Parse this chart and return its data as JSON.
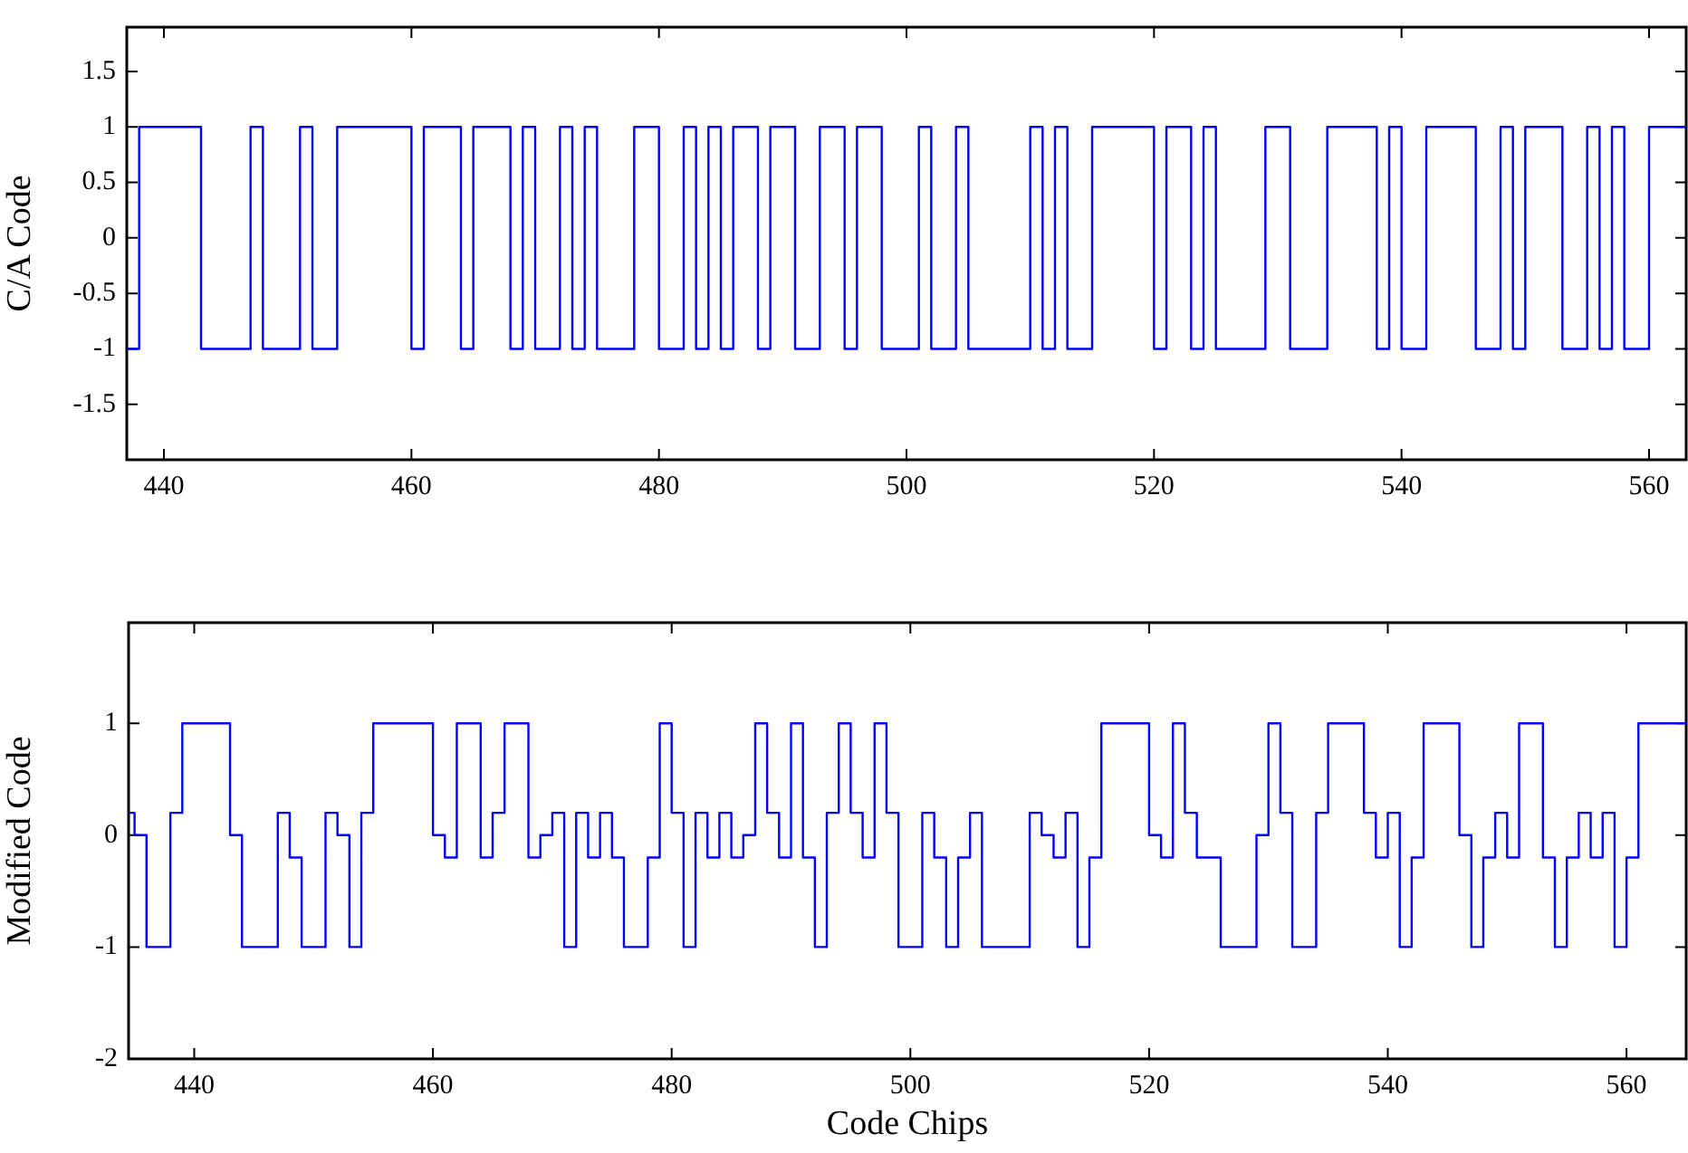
{
  "chart_data": [
    {
      "type": "step",
      "ylabel": "C/A Code",
      "color": "#0000ff",
      "xlim": [
        437,
        563
      ],
      "xticks": [
        440,
        460,
        480,
        500,
        520,
        540,
        560
      ],
      "ylim": [
        -2,
        1.9
      ],
      "yticks": [
        -1.5,
        -1,
        -0.5,
        0,
        0.5,
        1,
        1.5
      ],
      "grid": false,
      "x": [
        437,
        438,
        443,
        447,
        448,
        451,
        452,
        454,
        460,
        461,
        464,
        465,
        468,
        469,
        470,
        472,
        473,
        474,
        475,
        478,
        480,
        482,
        483,
        484,
        485,
        486,
        488,
        489,
        491,
        493,
        495,
        496,
        498,
        501,
        502,
        504,
        505,
        510,
        511,
        512,
        513,
        515,
        520,
        521,
        523,
        524,
        525,
        529,
        531,
        534,
        538,
        539,
        540,
        542,
        546,
        548,
        549,
        550,
        553,
        555,
        556,
        557,
        558,
        560,
        563
      ],
      "values": [
        -1,
        1,
        -1,
        1,
        -1,
        1,
        -1,
        1,
        -1,
        1,
        -1,
        1,
        -1,
        1,
        -1,
        1,
        -1,
        1,
        -1,
        1,
        -1,
        1,
        -1,
        1,
        -1,
        1,
        -1,
        1,
        -1,
        1,
        -1,
        1,
        -1,
        1,
        -1,
        1,
        -1,
        1,
        -1,
        1,
        -1,
        1,
        -1,
        1,
        -1,
        1,
        -1,
        1,
        -1,
        1,
        -1,
        1,
        -1,
        1,
        -1,
        1,
        -1,
        1,
        -1,
        1,
        -1,
        1,
        -1,
        1,
        1
      ]
    },
    {
      "type": "step",
      "xlabel": "Code Chips",
      "ylabel": "Modified Code",
      "color": "#0000ff",
      "xlim": [
        434.5,
        565
      ],
      "xticks": [
        440,
        460,
        480,
        500,
        520,
        540,
        560
      ],
      "ylim": [
        -2,
        1.9
      ],
      "yticks": [
        -2,
        -1,
        0,
        1
      ],
      "grid": false,
      "x": [
        434.5,
        435,
        436,
        438,
        439,
        443,
        444,
        447,
        448,
        449,
        451,
        452,
        453,
        454,
        455,
        460,
        461,
        462,
        464,
        465,
        466,
        468,
        469,
        470,
        471,
        472,
        473,
        474,
        475,
        476,
        478,
        479,
        480,
        481,
        482,
        483,
        484,
        485,
        486,
        487,
        488,
        489,
        490,
        491,
        492,
        493,
        494,
        495,
        496,
        497,
        498,
        499,
        501,
        502,
        503,
        504,
        505,
        506,
        510,
        511,
        512,
        513,
        514,
        515,
        516,
        520,
        521,
        522,
        523,
        524,
        526,
        529,
        530,
        531,
        532,
        534,
        535,
        538,
        539,
        540,
        541,
        542,
        543,
        546,
        547,
        548,
        549,
        550,
        551,
        553,
        554,
        555,
        556,
        557,
        558,
        559,
        560,
        561,
        565
      ],
      "values": [
        0.2,
        0,
        -1,
        0.2,
        1,
        0,
        -1,
        0.2,
        -0.2,
        -1,
        0.2,
        0,
        -1,
        0.2,
        1,
        0,
        -0.2,
        1,
        -0.2,
        0.2,
        1,
        -0.2,
        0,
        0.2,
        -1,
        0.2,
        -0.2,
        0.2,
        -0.2,
        -1,
        -0.2,
        1,
        0.2,
        -1,
        0.2,
        -0.2,
        0.2,
        -0.2,
        0,
        1,
        0.2,
        -0.2,
        1,
        -0.2,
        -1,
        0.2,
        1,
        0.2,
        -0.2,
        1,
        0.2,
        -1,
        0.2,
        -0.2,
        -1,
        -0.2,
        0.2,
        -1,
        0.2,
        0,
        -0.2,
        0.2,
        -1,
        -0.2,
        1,
        0,
        -0.2,
        1,
        0.2,
        -0.2,
        -1,
        0,
        1,
        0.2,
        -1,
        0.2,
        1,
        0.2,
        -0.2,
        0.2,
        -1,
        -0.2,
        1,
        0,
        -1,
        -0.2,
        0.2,
        -0.2,
        1,
        -0.2,
        -1,
        -0.2,
        0.2,
        -0.2,
        0.2,
        -1,
        -0.2,
        1,
        1
      ]
    }
  ]
}
